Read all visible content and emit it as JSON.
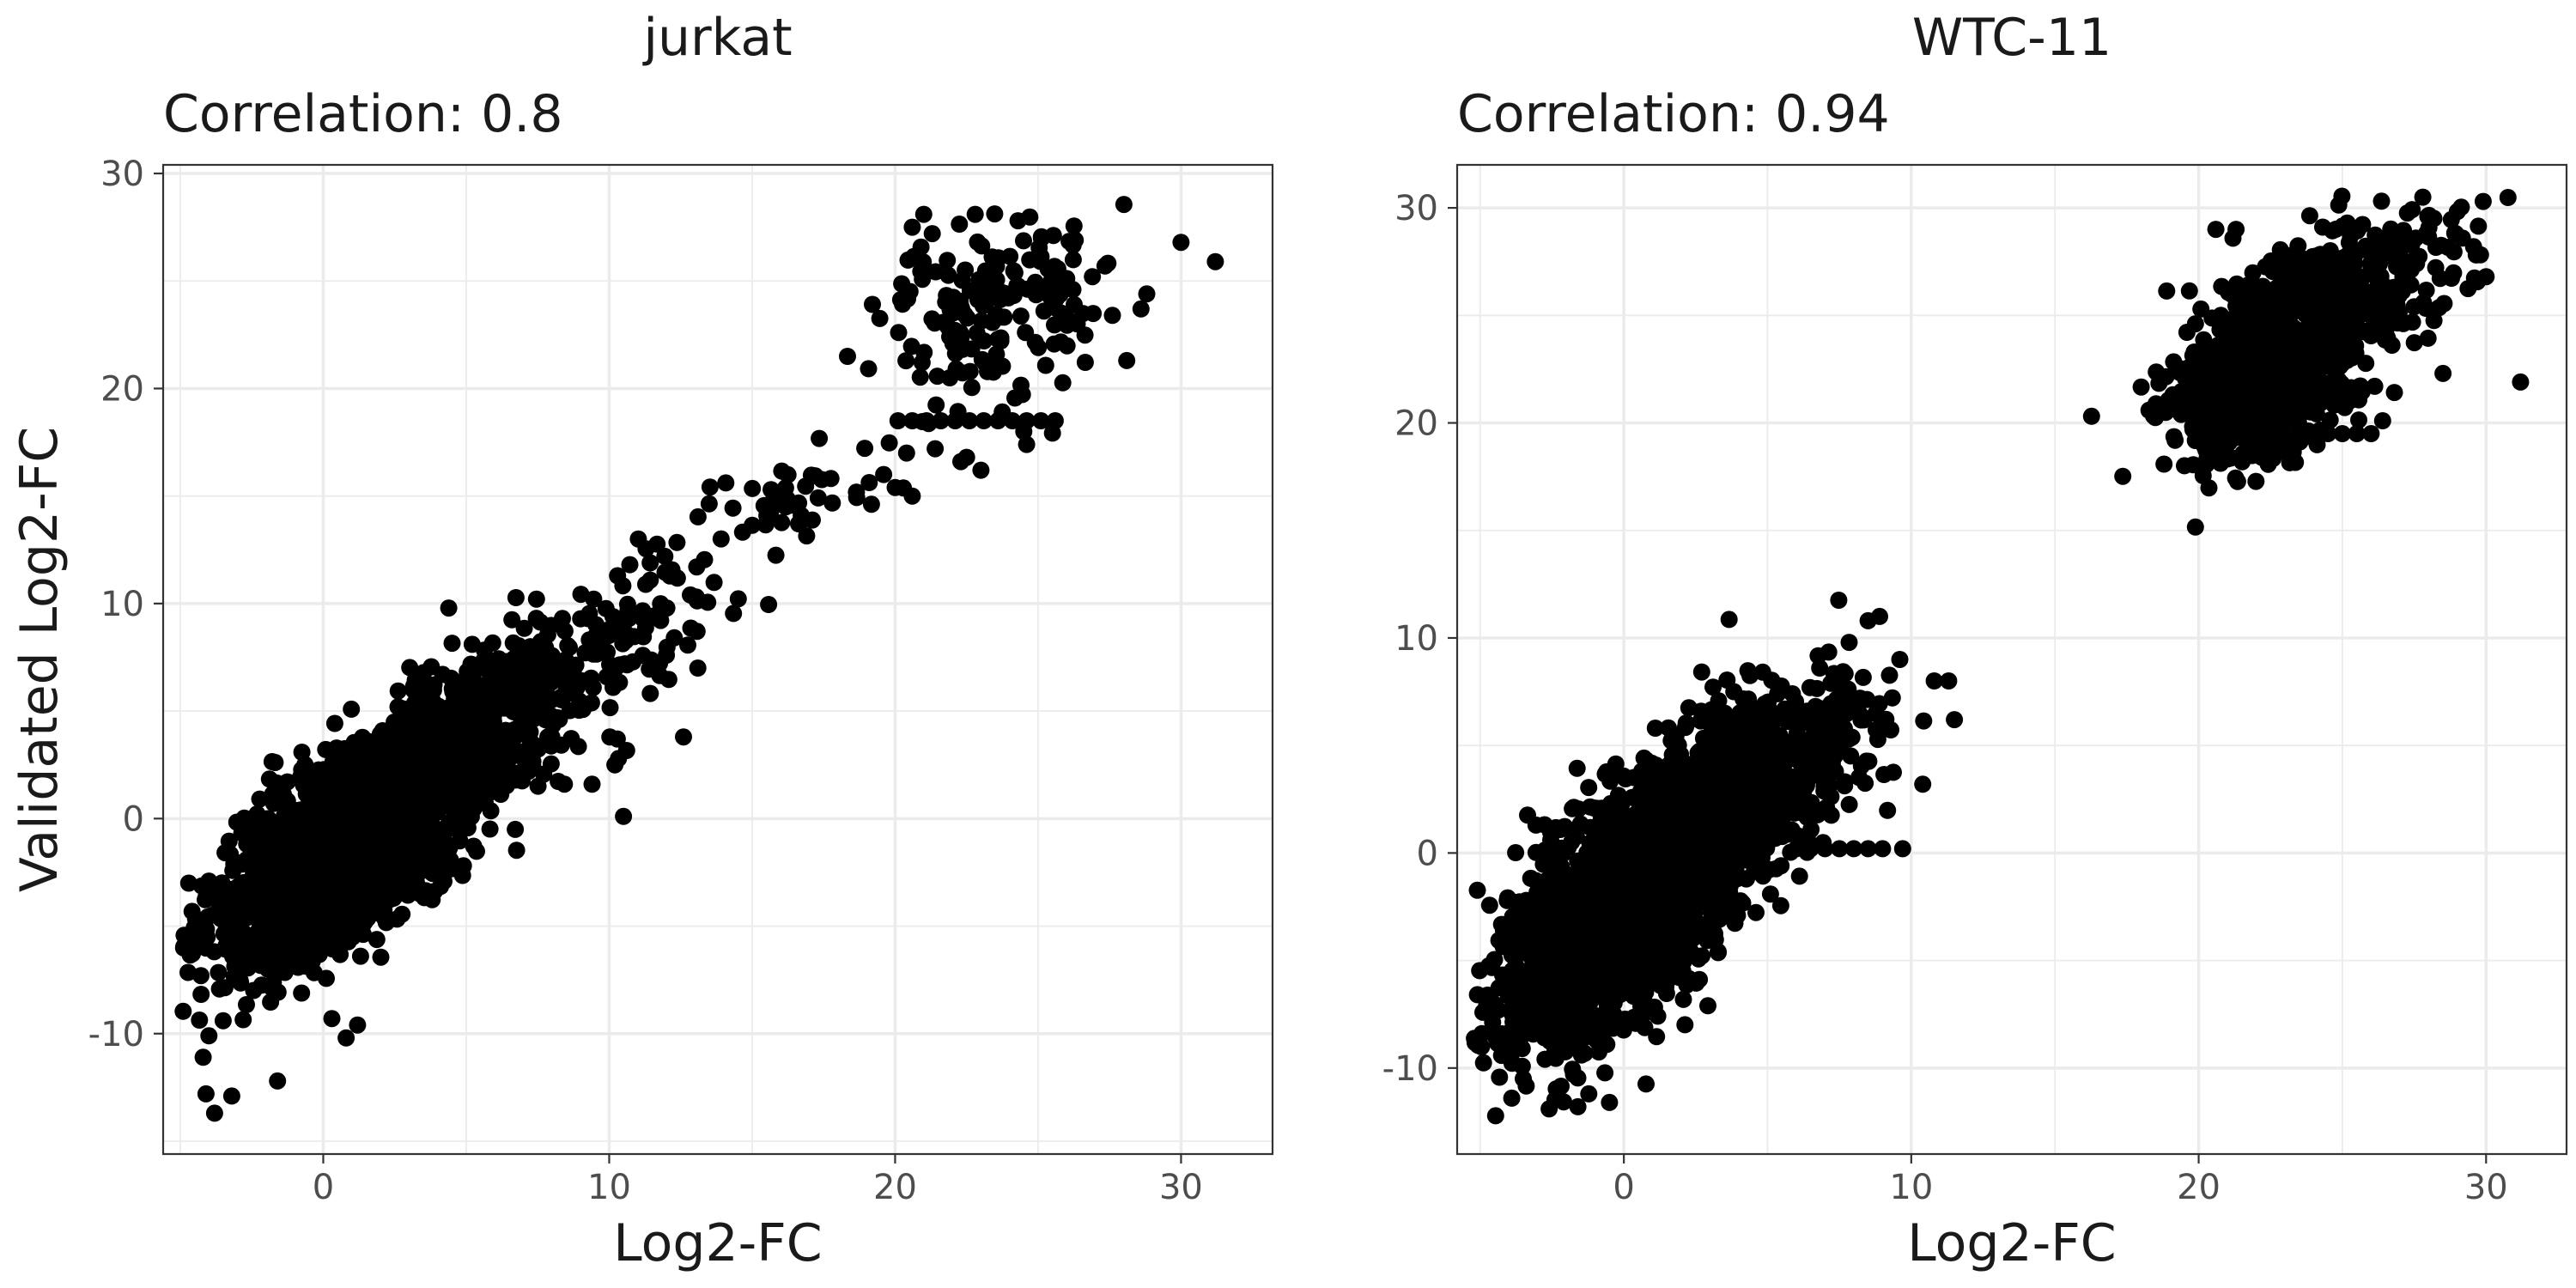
{
  "chart_data": [
    {
      "type": "scatter",
      "title": "jurkat",
      "subtitle": "Correlation: 0.8",
      "xlabel": "Log2-FC",
      "ylabel": "Validated Log2-FC",
      "xlim": [
        -5.6,
        33.2
      ],
      "ylim": [
        -15.6,
        30.4
      ],
      "x_ticks": [
        0,
        10,
        20,
        30
      ],
      "y_ticks": [
        -10,
        0,
        10,
        20,
        30
      ],
      "grid": true,
      "point_color": "#000000",
      "clusters": [
        {
          "center": [
            0.5,
            -1.5
          ],
          "spread": [
            2.0,
            2.6
          ],
          "rho": 0.62,
          "count": 2200
        },
        {
          "center": [
            4.0,
            2.5
          ],
          "spread": [
            1.7,
            2.4
          ],
          "rho": 0.5,
          "count": 500
        },
        {
          "center": [
            7.5,
            5.5
          ],
          "spread": [
            1.6,
            2.2
          ],
          "rho": 0.5,
          "count": 170
        },
        {
          "center": [
            11.5,
            9.5
          ],
          "spread": [
            1.6,
            2.0
          ],
          "rho": 0.55,
          "count": 70
        },
        {
          "center": [
            16.5,
            14.5
          ],
          "spread": [
            1.6,
            1.5
          ],
          "rho": 0.6,
          "count": 40
        },
        {
          "center": [
            23.5,
            24.0
          ],
          "spread": [
            2.0,
            2.0
          ],
          "rho": 0.2,
          "count": 170
        }
      ],
      "points": [
        [
          -3.8,
          -13.7
        ],
        [
          -4.1,
          -12.8
        ],
        [
          -3.2,
          -12.9
        ],
        [
          -1.6,
          -12.2
        ],
        [
          -4.2,
          -11.1
        ],
        [
          -4.0,
          -10.1
        ],
        [
          -3.5,
          -9.4
        ],
        [
          0.3,
          -9.3
        ],
        [
          1.2,
          -9.6
        ],
        [
          0.8,
          -10.2
        ],
        [
          20.1,
          18.5
        ],
        [
          20.6,
          18.5
        ],
        [
          21.1,
          18.5
        ],
        [
          21.6,
          18.5
        ],
        [
          22.1,
          18.5
        ],
        [
          22.6,
          18.5
        ],
        [
          23.1,
          18.5
        ],
        [
          23.6,
          18.5
        ],
        [
          24.1,
          18.5
        ],
        [
          24.6,
          18.5
        ],
        [
          25.1,
          18.5
        ],
        [
          25.6,
          18.5
        ],
        [
          20.4,
          17.0
        ],
        [
          21.4,
          17.2
        ],
        [
          22.3,
          16.6
        ],
        [
          23.0,
          16.2
        ],
        [
          24.5,
          18.0
        ],
        [
          24.6,
          17.4
        ],
        [
          20.0,
          15.4
        ],
        [
          19.6,
          16.0
        ],
        [
          20.6,
          15.0
        ],
        [
          22.5,
          16.8
        ],
        [
          20.6,
          27.5
        ],
        [
          21.0,
          28.1
        ],
        [
          21.3,
          27.2
        ],
        [
          22.8,
          28.1
        ],
        [
          24.3,
          27.8
        ],
        [
          26.3,
          26.9
        ],
        [
          26.9,
          25.2
        ],
        [
          27.6,
          23.4
        ],
        [
          28.6,
          23.7
        ],
        [
          28.8,
          24.4
        ],
        [
          28.1,
          21.3
        ],
        [
          30.0,
          26.8
        ],
        [
          31.2,
          25.9
        ],
        [
          10.5,
          0.1
        ],
        [
          9.4,
          1.6
        ],
        [
          10.2,
          2.5
        ],
        [
          12.6,
          3.8
        ],
        [
          12.0,
          7.6
        ],
        [
          13.1,
          7.0
        ]
      ]
    },
    {
      "type": "scatter",
      "title": "WTC-11",
      "subtitle": "Correlation: 0.94",
      "xlabel": "Log2-FC",
      "ylabel": "",
      "xlim": [
        -5.8,
        32.8
      ],
      "ylim": [
        -14.0,
        32.0
      ],
      "x_ticks": [
        0,
        10,
        20,
        30
      ],
      "y_ticks": [
        -10,
        0,
        10,
        20,
        30
      ],
      "grid": true,
      "point_color": "#000000",
      "clusters": [
        {
          "center": [
            0.0,
            -2.5
          ],
          "spread": [
            2.1,
            3.2
          ],
          "rho": 0.62,
          "count": 2000
        },
        {
          "center": [
            3.5,
            2.0
          ],
          "spread": [
            1.6,
            2.4
          ],
          "rho": 0.45,
          "count": 600
        },
        {
          "center": [
            6.5,
            5.0
          ],
          "spread": [
            1.5,
            2.0
          ],
          "rho": 0.4,
          "count": 200
        },
        {
          "center": [
            22.5,
            22.8
          ],
          "spread": [
            1.8,
            2.4
          ],
          "rho": 0.5,
          "count": 900
        },
        {
          "center": [
            26.0,
            26.5
          ],
          "spread": [
            1.6,
            1.6
          ],
          "rho": 0.4,
          "count": 200
        }
      ],
      "points": [
        [
          6.0,
          0.2
        ],
        [
          6.5,
          0.2
        ],
        [
          7.0,
          0.2
        ],
        [
          7.5,
          0.2
        ],
        [
          8.0,
          0.2
        ],
        [
          8.5,
          0.2
        ],
        [
          9.0,
          0.2
        ],
        [
          9.7,
          0.2
        ],
        [
          10.8,
          8.0
        ],
        [
          11.3,
          8.0
        ],
        [
          11.5,
          6.2
        ],
        [
          10.4,
          3.2
        ],
        [
          8.5,
          10.8
        ],
        [
          8.9,
          11.0
        ],
        [
          9.6,
          9.0
        ],
        [
          31.2,
          21.9
        ],
        [
          30.0,
          26.8
        ],
        [
          29.9,
          30.3
        ],
        [
          27.8,
          30.5
        ],
        [
          26.4,
          20.1
        ],
        [
          28.5,
          22.3
        ],
        [
          20.6,
          29.0
        ],
        [
          21.3,
          29.0
        ],
        [
          19.9,
          19.5
        ],
        [
          20.5,
          19.5
        ],
        [
          21.0,
          19.5
        ],
        [
          21.5,
          19.5
        ],
        [
          22.0,
          19.5
        ],
        [
          22.5,
          19.5
        ],
        [
          23.0,
          19.5
        ],
        [
          23.5,
          19.5
        ],
        [
          24.0,
          19.5
        ],
        [
          24.5,
          19.5
        ],
        [
          25.0,
          19.5
        ],
        [
          25.5,
          19.5
        ],
        [
          26.0,
          19.5
        ],
        [
          -3.9,
          -11.4
        ],
        [
          -1.6,
          -11.8
        ],
        [
          -2.6,
          -11.9
        ],
        [
          -0.5,
          -11.6
        ],
        [
          -3.5,
          -10.5
        ]
      ]
    }
  ]
}
